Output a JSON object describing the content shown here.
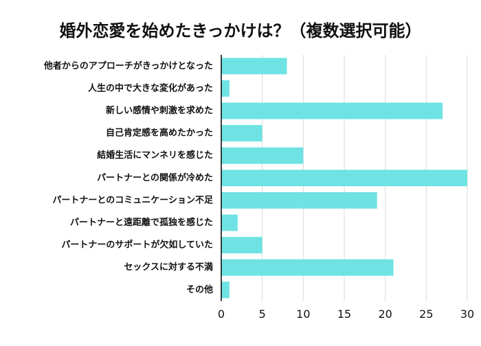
{
  "chart_data": {
    "type": "bar",
    "orientation": "horizontal",
    "title": "婚外恋愛を始めたきっかけは？（複数選択可能）",
    "xlabel": "",
    "ylabel": "",
    "categories": [
      "他者からのアプローチがきっかけとなった",
      "人生の中で大きな変化があった",
      "新しい感情や刺激を求めた",
      "自己肯定感を高めたかった",
      "結婚生活にマンネリを感じた",
      "パートナーとの関係が冷めた",
      "パートナーとのコミュニケーション不足",
      "パートナーと遠距離で孤独を感じた",
      "パートナーのサポートが欠如していた",
      "セックスに対する不満",
      "その他"
    ],
    "values": [
      8,
      1,
      27,
      5,
      10,
      30,
      19,
      2,
      5,
      21,
      1
    ],
    "xlim": [
      0,
      30
    ],
    "ticks": [
      0,
      5,
      10,
      15,
      20,
      25,
      30
    ],
    "grid": true,
    "legend": "none",
    "colors": {
      "bar": "#6fe3e4",
      "grid": "#d9d9d9",
      "axis": "#000000",
      "text": "#111111"
    }
  }
}
